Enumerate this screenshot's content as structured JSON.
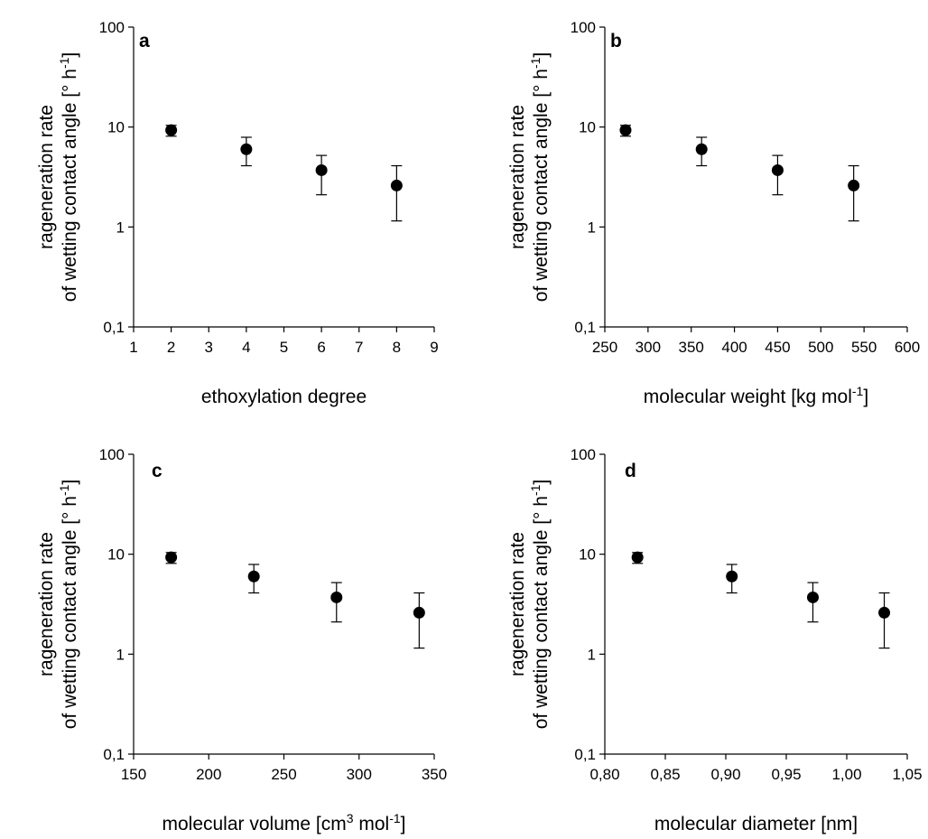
{
  "chart_data": [
    {
      "panel": "a",
      "type": "scatter",
      "xlabel": "ethoxylation degree",
      "ylabel": {
        "line1": "rageneration rate",
        "line2": "of wetting contact angle [° h",
        "sup": "-1",
        "close": "]"
      },
      "xlim": [
        1,
        9
      ],
      "xticks": [
        "1",
        "2",
        "3",
        "4",
        "5",
        "6",
        "7",
        "8",
        "9"
      ],
      "xtick_values": [
        1,
        2,
        3,
        4,
        5,
        6,
        7,
        8,
        9
      ],
      "yscale": "log",
      "ylim": [
        0.1,
        100
      ],
      "yticks": [
        "0,1",
        "1",
        "10",
        "100"
      ],
      "ytick_values": [
        0.1,
        1,
        10,
        100
      ],
      "points": [
        {
          "x": 2,
          "y": 9.3,
          "err_low": 8.1,
          "err_high": 10.4
        },
        {
          "x": 4,
          "y": 6.0,
          "err_low": 4.1,
          "err_high": 7.9
        },
        {
          "x": 6,
          "y": 3.7,
          "err_low": 2.1,
          "err_high": 5.2
        },
        {
          "x": 8,
          "y": 2.6,
          "err_low": 1.15,
          "err_high": 4.1
        }
      ]
    },
    {
      "panel": "b",
      "type": "scatter",
      "xlabel": {
        "main": "molecular weight [kg mol",
        "sup": "-1",
        "close": "]"
      },
      "ylabel": {
        "line1": "rageneration rate",
        "line2": "of wetting contact angle [° h",
        "sup": "-1",
        "close": "]"
      },
      "xlim": [
        250,
        600
      ],
      "xticks": [
        "250",
        "300",
        "350",
        "400",
        "450",
        "500",
        "550",
        "600"
      ],
      "xtick_values": [
        250,
        300,
        350,
        400,
        450,
        500,
        550,
        600
      ],
      "yscale": "log",
      "ylim": [
        0.1,
        100
      ],
      "yticks": [
        "0,1",
        "1",
        "10",
        "100"
      ],
      "ytick_values": [
        0.1,
        1,
        10,
        100
      ],
      "points": [
        {
          "x": 274,
          "y": 9.3,
          "err_low": 8.1,
          "err_high": 10.4
        },
        {
          "x": 362,
          "y": 6.0,
          "err_low": 4.1,
          "err_high": 7.9
        },
        {
          "x": 450,
          "y": 3.7,
          "err_low": 2.1,
          "err_high": 5.2
        },
        {
          "x": 538,
          "y": 2.6,
          "err_low": 1.15,
          "err_high": 4.1
        }
      ]
    },
    {
      "panel": "c",
      "type": "scatter",
      "xlabel": {
        "main": "molecular volume [cm",
        "sup1": "3",
        "mid": " mol",
        "sup": "-1",
        "close": "]"
      },
      "ylabel": {
        "line1": "rageneration rate",
        "line2": "of wetting contact angle [° h",
        "sup": "-1",
        "close": "]"
      },
      "xlim": [
        150,
        350
      ],
      "xticks": [
        "150",
        "200",
        "250",
        "300",
        "350"
      ],
      "xtick_values": [
        150,
        200,
        250,
        300,
        350
      ],
      "yscale": "log",
      "ylim": [
        0.1,
        100
      ],
      "yticks": [
        "0,1",
        "1",
        "10",
        "100"
      ],
      "ytick_values": [
        0.1,
        1,
        10,
        100
      ],
      "points": [
        {
          "x": 175,
          "y": 9.3,
          "err_low": 8.1,
          "err_high": 10.4
        },
        {
          "x": 230,
          "y": 6.0,
          "err_low": 4.1,
          "err_high": 7.9
        },
        {
          "x": 285,
          "y": 3.7,
          "err_low": 2.1,
          "err_high": 5.2
        },
        {
          "x": 340,
          "y": 2.6,
          "err_low": 1.15,
          "err_high": 4.1
        }
      ]
    },
    {
      "panel": "d",
      "type": "scatter",
      "xlabel": "molecular diameter [nm]",
      "ylabel": {
        "line1": "rageneration rate",
        "line2": "of wetting contact angle [° h",
        "sup": "-1",
        "close": "]"
      },
      "xlim": [
        0.8,
        1.05
      ],
      "xticks": [
        "0,80",
        "0,85",
        "0,90",
        "0,95",
        "1,00",
        "1,05"
      ],
      "xtick_values": [
        0.8,
        0.85,
        0.9,
        0.95,
        1.0,
        1.05
      ],
      "yscale": "log",
      "ylim": [
        0.1,
        100
      ],
      "yticks": [
        "0,1",
        "1",
        "10",
        "100"
      ],
      "ytick_values": [
        0.1,
        1,
        10,
        100
      ],
      "points": [
        {
          "x": 0.827,
          "y": 9.3,
          "err_low": 8.1,
          "err_high": 10.4
        },
        {
          "x": 0.905,
          "y": 6.0,
          "err_low": 4.1,
          "err_high": 7.9
        },
        {
          "x": 0.972,
          "y": 3.7,
          "err_low": 2.1,
          "err_high": 5.2
        },
        {
          "x": 1.031,
          "y": 2.6,
          "err_low": 1.15,
          "err_high": 4.1
        }
      ]
    }
  ]
}
